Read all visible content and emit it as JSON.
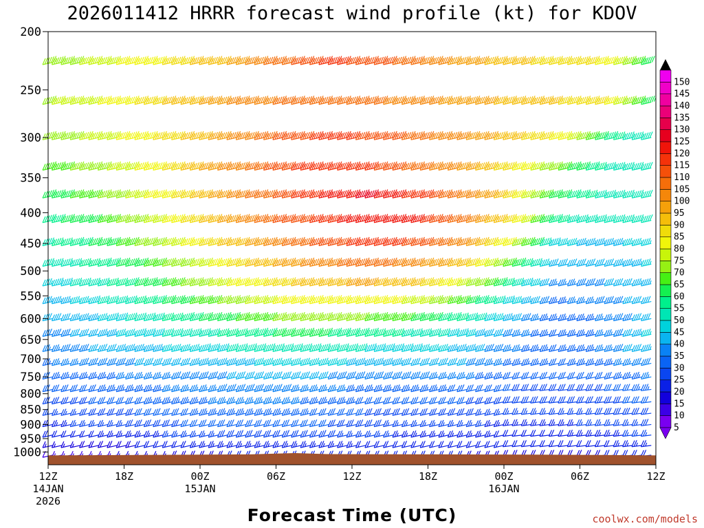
{
  "chart_data": {
    "type": "wind-barb time-height",
    "title": "2026011412 HRRR forecast wind profile (kt) for KDOV",
    "xlabel": "Forecast Time (UTC)",
    "credit": "coolwx.com/models",
    "y_ticks": [
      "200",
      "250",
      "300",
      "350",
      "400",
      "450",
      "500",
      "550",
      "600",
      "650",
      "700",
      "750",
      "800",
      "850",
      "900",
      "950",
      "1000"
    ],
    "y_levels": [
      225,
      262,
      300,
      337,
      375,
      412,
      450,
      487,
      525,
      562,
      600,
      637,
      675,
      712,
      750,
      787,
      825,
      862,
      900,
      937,
      975,
      1012
    ],
    "x_ticks": [
      {
        "hour": 0,
        "l1": "12Z",
        "l2": "14JAN",
        "l3": "2026"
      },
      {
        "hour": 6,
        "l1": "18Z",
        "l2": "",
        "l3": ""
      },
      {
        "hour": 12,
        "l1": "00Z",
        "l2": "15JAN",
        "l3": ""
      },
      {
        "hour": 18,
        "l1": "06Z",
        "l2": "",
        "l3": ""
      },
      {
        "hour": 24,
        "l1": "12Z",
        "l2": "",
        "l3": ""
      },
      {
        "hour": 30,
        "l1": "18Z",
        "l2": "",
        "l3": ""
      },
      {
        "hour": 36,
        "l1": "00Z",
        "l2": "16JAN",
        "l3": ""
      },
      {
        "hour": 42,
        "l1": "06Z",
        "l2": "",
        "l3": ""
      },
      {
        "hour": 48,
        "l1": "12Z",
        "l2": "",
        "l3": ""
      }
    ],
    "x_range": [
      0,
      48
    ],
    "y_range": [
      200,
      1050
    ],
    "y_scale": "log-pressure",
    "colorbar_levels": [
      5,
      10,
      15,
      20,
      25,
      30,
      35,
      40,
      45,
      50,
      55,
      60,
      65,
      70,
      75,
      80,
      85,
      90,
      95,
      100,
      105,
      110,
      115,
      120,
      125,
      130,
      135,
      140,
      145,
      150
    ],
    "colorbar_colors": [
      "#7a00f0",
      "#3c00e6",
      "#1200dc",
      "#0a20e6",
      "#0a46f0",
      "#0a64f5",
      "#0a82f5",
      "#0ab4f0",
      "#00d2dc",
      "#00e6b4",
      "#00f08c",
      "#14f050",
      "#46f014",
      "#96f014",
      "#c8f50a",
      "#f0f50a",
      "#f0dc0a",
      "#f5be0a",
      "#f5a00a",
      "#f5870a",
      "#f56e0a",
      "#f5500a",
      "#f5320a",
      "#f0140a",
      "#e6001e",
      "#e6004b",
      "#eb0078",
      "#f000a0",
      "#f000c8",
      "#f000f0"
    ],
    "colorbar_top_label": "150",
    "terrain_color": "#a0522d",
    "speed_grid_sample_kt": [
      [
        72,
        76,
        82,
        88,
        96,
        108,
        116,
        114,
        105,
        98,
        92,
        88,
        84,
        60
      ],
      [
        74,
        78,
        86,
        92,
        100,
        106,
        110,
        106,
        102,
        98,
        94,
        90,
        86,
        62
      ],
      [
        70,
        76,
        82,
        90,
        100,
        110,
        118,
        114,
        108,
        100,
        92,
        84,
        60,
        50
      ],
      [
        66,
        72,
        80,
        90,
        102,
        112,
        120,
        116,
        108,
        98,
        86,
        70,
        54,
        50
      ],
      [
        62,
        68,
        78,
        88,
        100,
        112,
        122,
        126,
        118,
        104,
        88,
        62,
        54,
        50
      ],
      [
        58,
        64,
        74,
        86,
        98,
        110,
        118,
        124,
        120,
        106,
        86,
        56,
        52,
        50
      ],
      [
        54,
        60,
        70,
        80,
        92,
        104,
        112,
        118,
        114,
        100,
        80,
        46,
        44,
        46
      ],
      [
        50,
        56,
        64,
        74,
        86,
        96,
        104,
        108,
        102,
        90,
        66,
        40,
        42,
        46
      ],
      [
        46,
        52,
        60,
        70,
        80,
        88,
        94,
        96,
        90,
        78,
        56,
        36,
        40,
        44
      ],
      [
        42,
        48,
        56,
        64,
        72,
        80,
        84,
        84,
        78,
        66,
        48,
        34,
        38,
        42
      ],
      [
        40,
        44,
        52,
        58,
        64,
        70,
        72,
        70,
        64,
        56,
        42,
        32,
        36,
        42
      ],
      [
        38,
        42,
        48,
        52,
        56,
        60,
        60,
        58,
        54,
        48,
        38,
        32,
        36,
        46
      ],
      [
        36,
        40,
        44,
        46,
        50,
        52,
        52,
        50,
        48,
        44,
        36,
        32,
        36,
        44
      ],
      [
        34,
        38,
        40,
        42,
        44,
        46,
        46,
        44,
        42,
        40,
        34,
        32,
        34,
        40
      ],
      [
        32,
        34,
        36,
        38,
        40,
        42,
        40,
        38,
        38,
        36,
        32,
        30,
        32,
        36
      ],
      [
        30,
        32,
        34,
        36,
        38,
        38,
        36,
        34,
        34,
        32,
        30,
        28,
        30,
        34
      ],
      [
        28,
        30,
        32,
        34,
        36,
        36,
        34,
        32,
        30,
        30,
        28,
        28,
        28,
        32
      ],
      [
        26,
        28,
        30,
        32,
        34,
        34,
        32,
        30,
        28,
        28,
        26,
        26,
        28,
        30
      ],
      [
        24,
        26,
        28,
        30,
        32,
        32,
        30,
        28,
        26,
        26,
        24,
        24,
        26,
        28
      ],
      [
        20,
        22,
        24,
        26,
        28,
        28,
        28,
        26,
        24,
        24,
        22,
        22,
        24,
        26
      ],
      [
        15,
        18,
        20,
        22,
        24,
        24,
        24,
        22,
        22,
        22,
        20,
        20,
        22,
        24
      ],
      [
        12,
        14,
        16,
        18,
        20,
        22,
        22,
        20,
        20,
        20,
        18,
        18,
        20,
        22
      ]
    ],
    "sample_hours": [
      0,
      3.7,
      7.4,
      11,
      14.8,
      18.5,
      22.2,
      25.8,
      29.5,
      33.2,
      36.9,
      40.6,
      44.3,
      48
    ]
  }
}
